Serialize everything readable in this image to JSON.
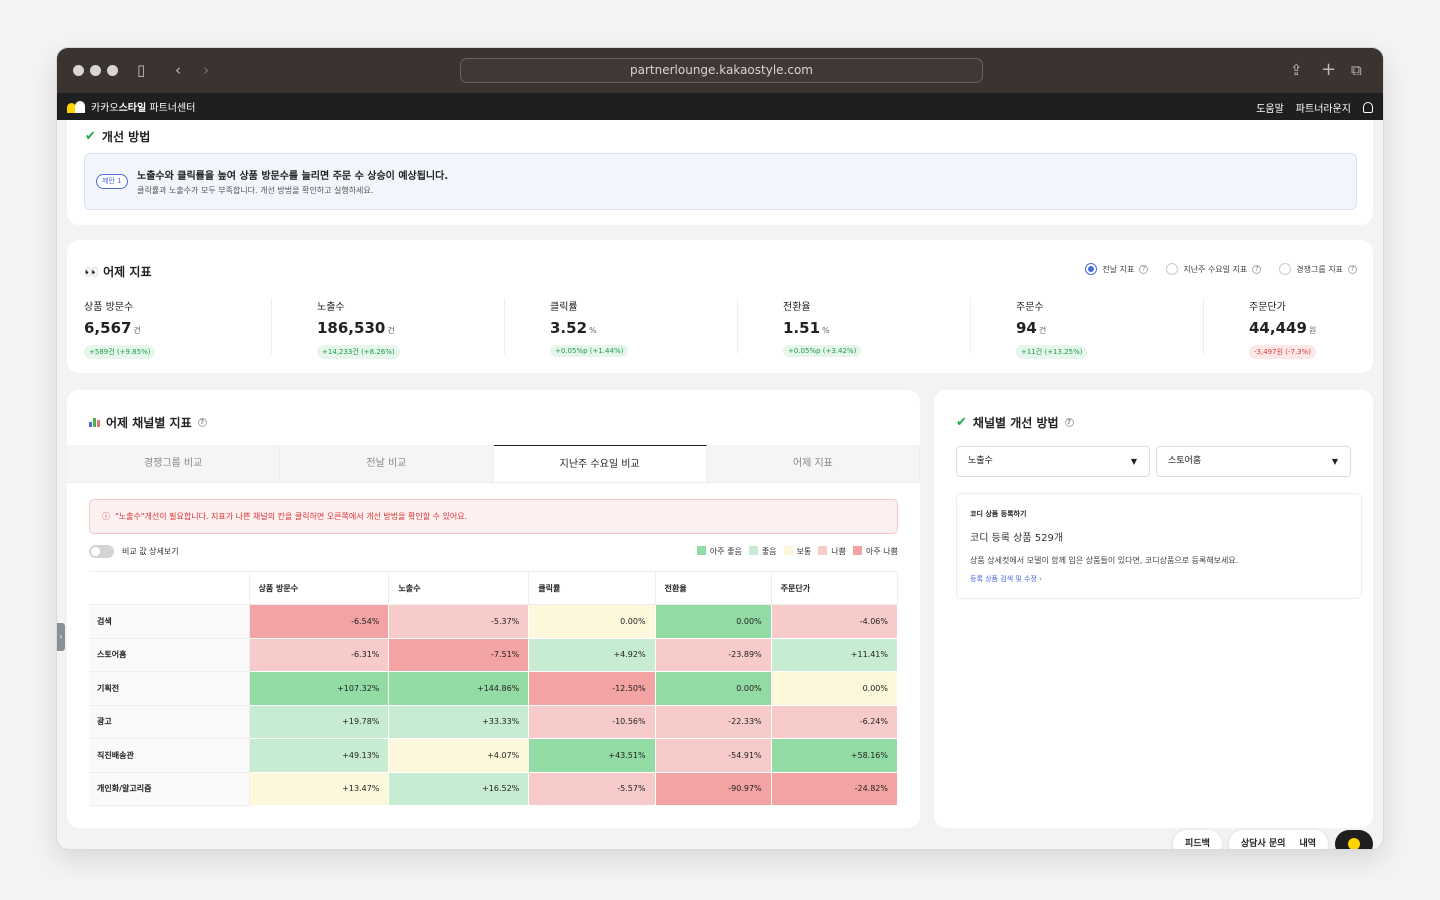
{
  "browser": {
    "url": "partnerlounge.kakaostyle.com"
  },
  "app": {
    "brand_prefix": "카카오",
    "brand_bold": "스타일",
    "brand_suffix": " 파트너센터",
    "help": "도움말",
    "lounge": "파트너라운지"
  },
  "improve": {
    "title": "개선 방법",
    "pill": "제안 1",
    "main": "노출수와 클릭률을 높여 상품 방문수를 늘리면 주문 수 상승이 예상됩니다.",
    "sub": "클릭률과 노출수가 모두 부족합니다. 개선 방법을 확인하고 실행하세요."
  },
  "metrics": {
    "title": "어제 지표",
    "eyes": "👀",
    "radios": [
      "전날 지표",
      "지난주 수요일 지표",
      "경쟁그룹 지표"
    ],
    "items": [
      {
        "label": "상품 방문수",
        "value": "6,567",
        "unit": "건",
        "delta": "+589건 (+9.85%)",
        "dir": "up"
      },
      {
        "label": "노출수",
        "value": "186,530",
        "unit": "건",
        "delta": "+14,233건 (+8.26%)",
        "dir": "up"
      },
      {
        "label": "클릭률",
        "value": "3.52",
        "unit": "%",
        "delta": "+0.05%p (+1.44%)",
        "dir": "up"
      },
      {
        "label": "전환율",
        "value": "1.51",
        "unit": "%",
        "delta": "+0.05%p (+3.42%)",
        "dir": "up"
      },
      {
        "label": "주문수",
        "value": "94",
        "unit": "건",
        "delta": "+11건 (+13.25%)",
        "dir": "up"
      },
      {
        "label": "주문단가",
        "value": "44,449",
        "unit": "원",
        "delta": "-3,497원 (-7.3%)",
        "dir": "down"
      }
    ]
  },
  "channel": {
    "title": "어제 채널별 지표",
    "tabs": [
      "경쟁그룹 비교",
      "전날 비교",
      "지난주 수요일 비교",
      "어제 지표"
    ],
    "alert": "\"노출수\"개선이 필요합니다. 지표가 나쁜 채널의 칸을 클릭하면 오른쪽에서 개선 방법을 확인할 수 있어요.",
    "toggle_label": "비교 값 상세보기",
    "legend": [
      "아주 좋음",
      "좋음",
      "보통",
      "나쁨",
      "아주 나쁨"
    ],
    "columns": [
      "상품 방문수",
      "노출수",
      "클릭률",
      "전환율",
      "주문단가"
    ],
    "rows": [
      {
        "name": "검색",
        "cells": [
          [
            "-6.54%",
            "vb"
          ],
          [
            "-5.37%",
            "b"
          ],
          [
            "0.00%",
            "n"
          ],
          [
            "0.00%",
            "vg"
          ],
          [
            "-4.06%",
            "b"
          ]
        ]
      },
      {
        "name": "스토어홈",
        "cells": [
          [
            "-6.31%",
            "b"
          ],
          [
            "-7.51%",
            "vb"
          ],
          [
            "+4.92%",
            "g"
          ],
          [
            "-23.89%",
            "b"
          ],
          [
            "+11.41%",
            "g"
          ]
        ]
      },
      {
        "name": "기획전",
        "cells": [
          [
            "+107.32%",
            "vg"
          ],
          [
            "+144.86%",
            "vg"
          ],
          [
            "-12.50%",
            "vb"
          ],
          [
            "0.00%",
            "vg"
          ],
          [
            "0.00%",
            "n"
          ]
        ]
      },
      {
        "name": "광고",
        "cells": [
          [
            "+19.78%",
            "g"
          ],
          [
            "+33.33%",
            "g"
          ],
          [
            "-10.56%",
            "b"
          ],
          [
            "-22.33%",
            "b"
          ],
          [
            "-6.24%",
            "b"
          ]
        ]
      },
      {
        "name": "직진배송관",
        "cells": [
          [
            "+49.13%",
            "g"
          ],
          [
            "+4.07%",
            "n"
          ],
          [
            "+43.51%",
            "vg"
          ],
          [
            "-54.91%",
            "b"
          ],
          [
            "+58.16%",
            "vg"
          ]
        ]
      },
      {
        "name": "개인화/알고리즘",
        "cells": [
          [
            "+13.47%",
            "n"
          ],
          [
            "+16.52%",
            "g"
          ],
          [
            "-5.57%",
            "b"
          ],
          [
            "-90.97%",
            "vb"
          ],
          [
            "-24.82%",
            "vb"
          ]
        ]
      }
    ]
  },
  "fix": {
    "title": "채널별 개선 방법",
    "select1": "노출수",
    "select2": "스토어홈",
    "small": "코디 상품 등록하기",
    "head": "코디 등록 상품 529개",
    "desc": "상품 상세컷에서 모델이 함께 입은 상품들이 있다면, 코디상품으로 등록해보세요.",
    "link": "등록 상품 검색 및 수정 ›"
  },
  "floating": {
    "feedback": "피드백",
    "inquiry": "상담사 문의",
    "history": "내역"
  }
}
